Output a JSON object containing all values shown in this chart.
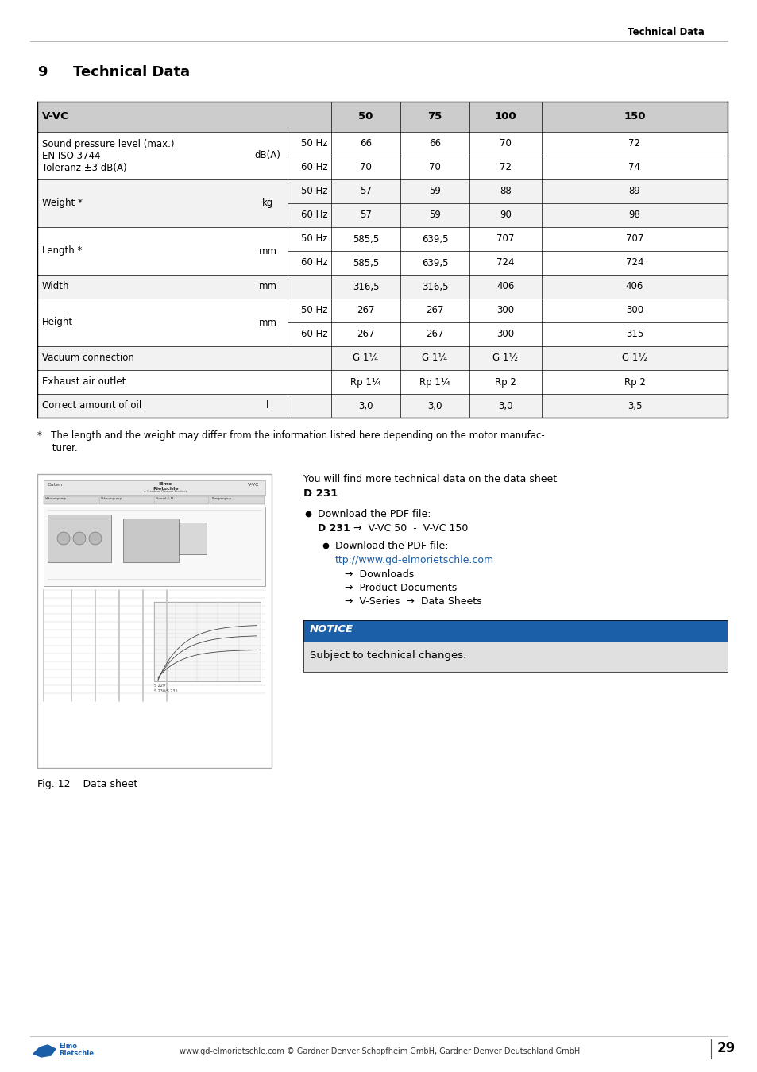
{
  "page_header": "Technical Data",
  "section_num": "9",
  "section_title": "Technical Data",
  "table_header_bg": "#cccccc",
  "table_row_bg_white": "#ffffff",
  "table_row_bg_gray": "#f2f2f2",
  "row_groups": [
    {
      "label": "Sound pressure level (max.)\nEN ISO 3744\nToleranz ±3 dB(A)",
      "unit": "dB(A)",
      "sub_rows": [
        {
          "freq": "50 Hz",
          "vals": [
            "66",
            "66",
            "70",
            "72"
          ]
        },
        {
          "freq": "60 Hz",
          "vals": [
            "70",
            "70",
            "72",
            "74"
          ]
        }
      ],
      "bg": "#ffffff"
    },
    {
      "label": "Weight *",
      "unit": "kg",
      "sub_rows": [
        {
          "freq": "50 Hz",
          "vals": [
            "57",
            "59",
            "88",
            "89"
          ]
        },
        {
          "freq": "60 Hz",
          "vals": [
            "57",
            "59",
            "90",
            "98"
          ]
        }
      ],
      "bg": "#f2f2f2"
    },
    {
      "label": "Length *",
      "unit": "mm",
      "sub_rows": [
        {
          "freq": "50 Hz",
          "vals": [
            "585,5",
            "639,5",
            "707",
            "707"
          ]
        },
        {
          "freq": "60 Hz",
          "vals": [
            "585,5",
            "639,5",
            "724",
            "724"
          ]
        }
      ],
      "bg": "#ffffff"
    },
    {
      "label": "Width",
      "unit": "mm",
      "sub_rows": [
        {
          "freq": "",
          "vals": [
            "316,5",
            "316,5",
            "406",
            "406"
          ]
        }
      ],
      "bg": "#f2f2f2"
    },
    {
      "label": "Height",
      "unit": "mm",
      "sub_rows": [
        {
          "freq": "50 Hz",
          "vals": [
            "267",
            "267",
            "300",
            "300"
          ]
        },
        {
          "freq": "60 Hz",
          "vals": [
            "267",
            "267",
            "300",
            "315"
          ]
        }
      ],
      "bg": "#ffffff"
    },
    {
      "label": "Vacuum connection",
      "unit": "",
      "sub_rows": [
        {
          "freq": "",
          "vals": [
            "G 1¹⁄₄",
            "G 1¹⁄₄",
            "G 1¹⁄₂",
            "G 1¹⁄₂"
          ]
        }
      ],
      "bg": "#f2f2f2"
    },
    {
      "label": "Exhaust air outlet",
      "unit": "",
      "sub_rows": [
        {
          "freq": "",
          "vals": [
            "Rp 1¹⁄₄",
            "Rp 1¹⁄₄",
            "Rp 2",
            "Rp 2"
          ]
        }
      ],
      "bg": "#ffffff"
    },
    {
      "label": "Correct amount of oil",
      "unit": "l",
      "sub_rows": [
        {
          "freq": "",
          "vals": [
            "3,0",
            "3,0",
            "3,0",
            "3,5"
          ]
        }
      ],
      "bg": "#f2f2f2"
    }
  ],
  "footnote_line1": "*   The length and the weight may differ from the information listed here depending on the motor manufac-",
  "footnote_line2": "     turer.",
  "info_line1": "You will find more technical data on the data sheet",
  "info_line2_bold": "D 231",
  "notice_bg": "#1a5fa8",
  "notice_text": "NOTICE",
  "notice_body_bg": "#e0e0e0",
  "notice_body": "Subject to technical changes.",
  "fig_caption": "Fig. 12    Data sheet",
  "footer_text": "www.gd-elmorietschle.com © Gardner Denver Schopfheim GmbH, Gardner Denver Deutschland GmbH",
  "page_num": "29",
  "link_color": "#1a5fa8"
}
